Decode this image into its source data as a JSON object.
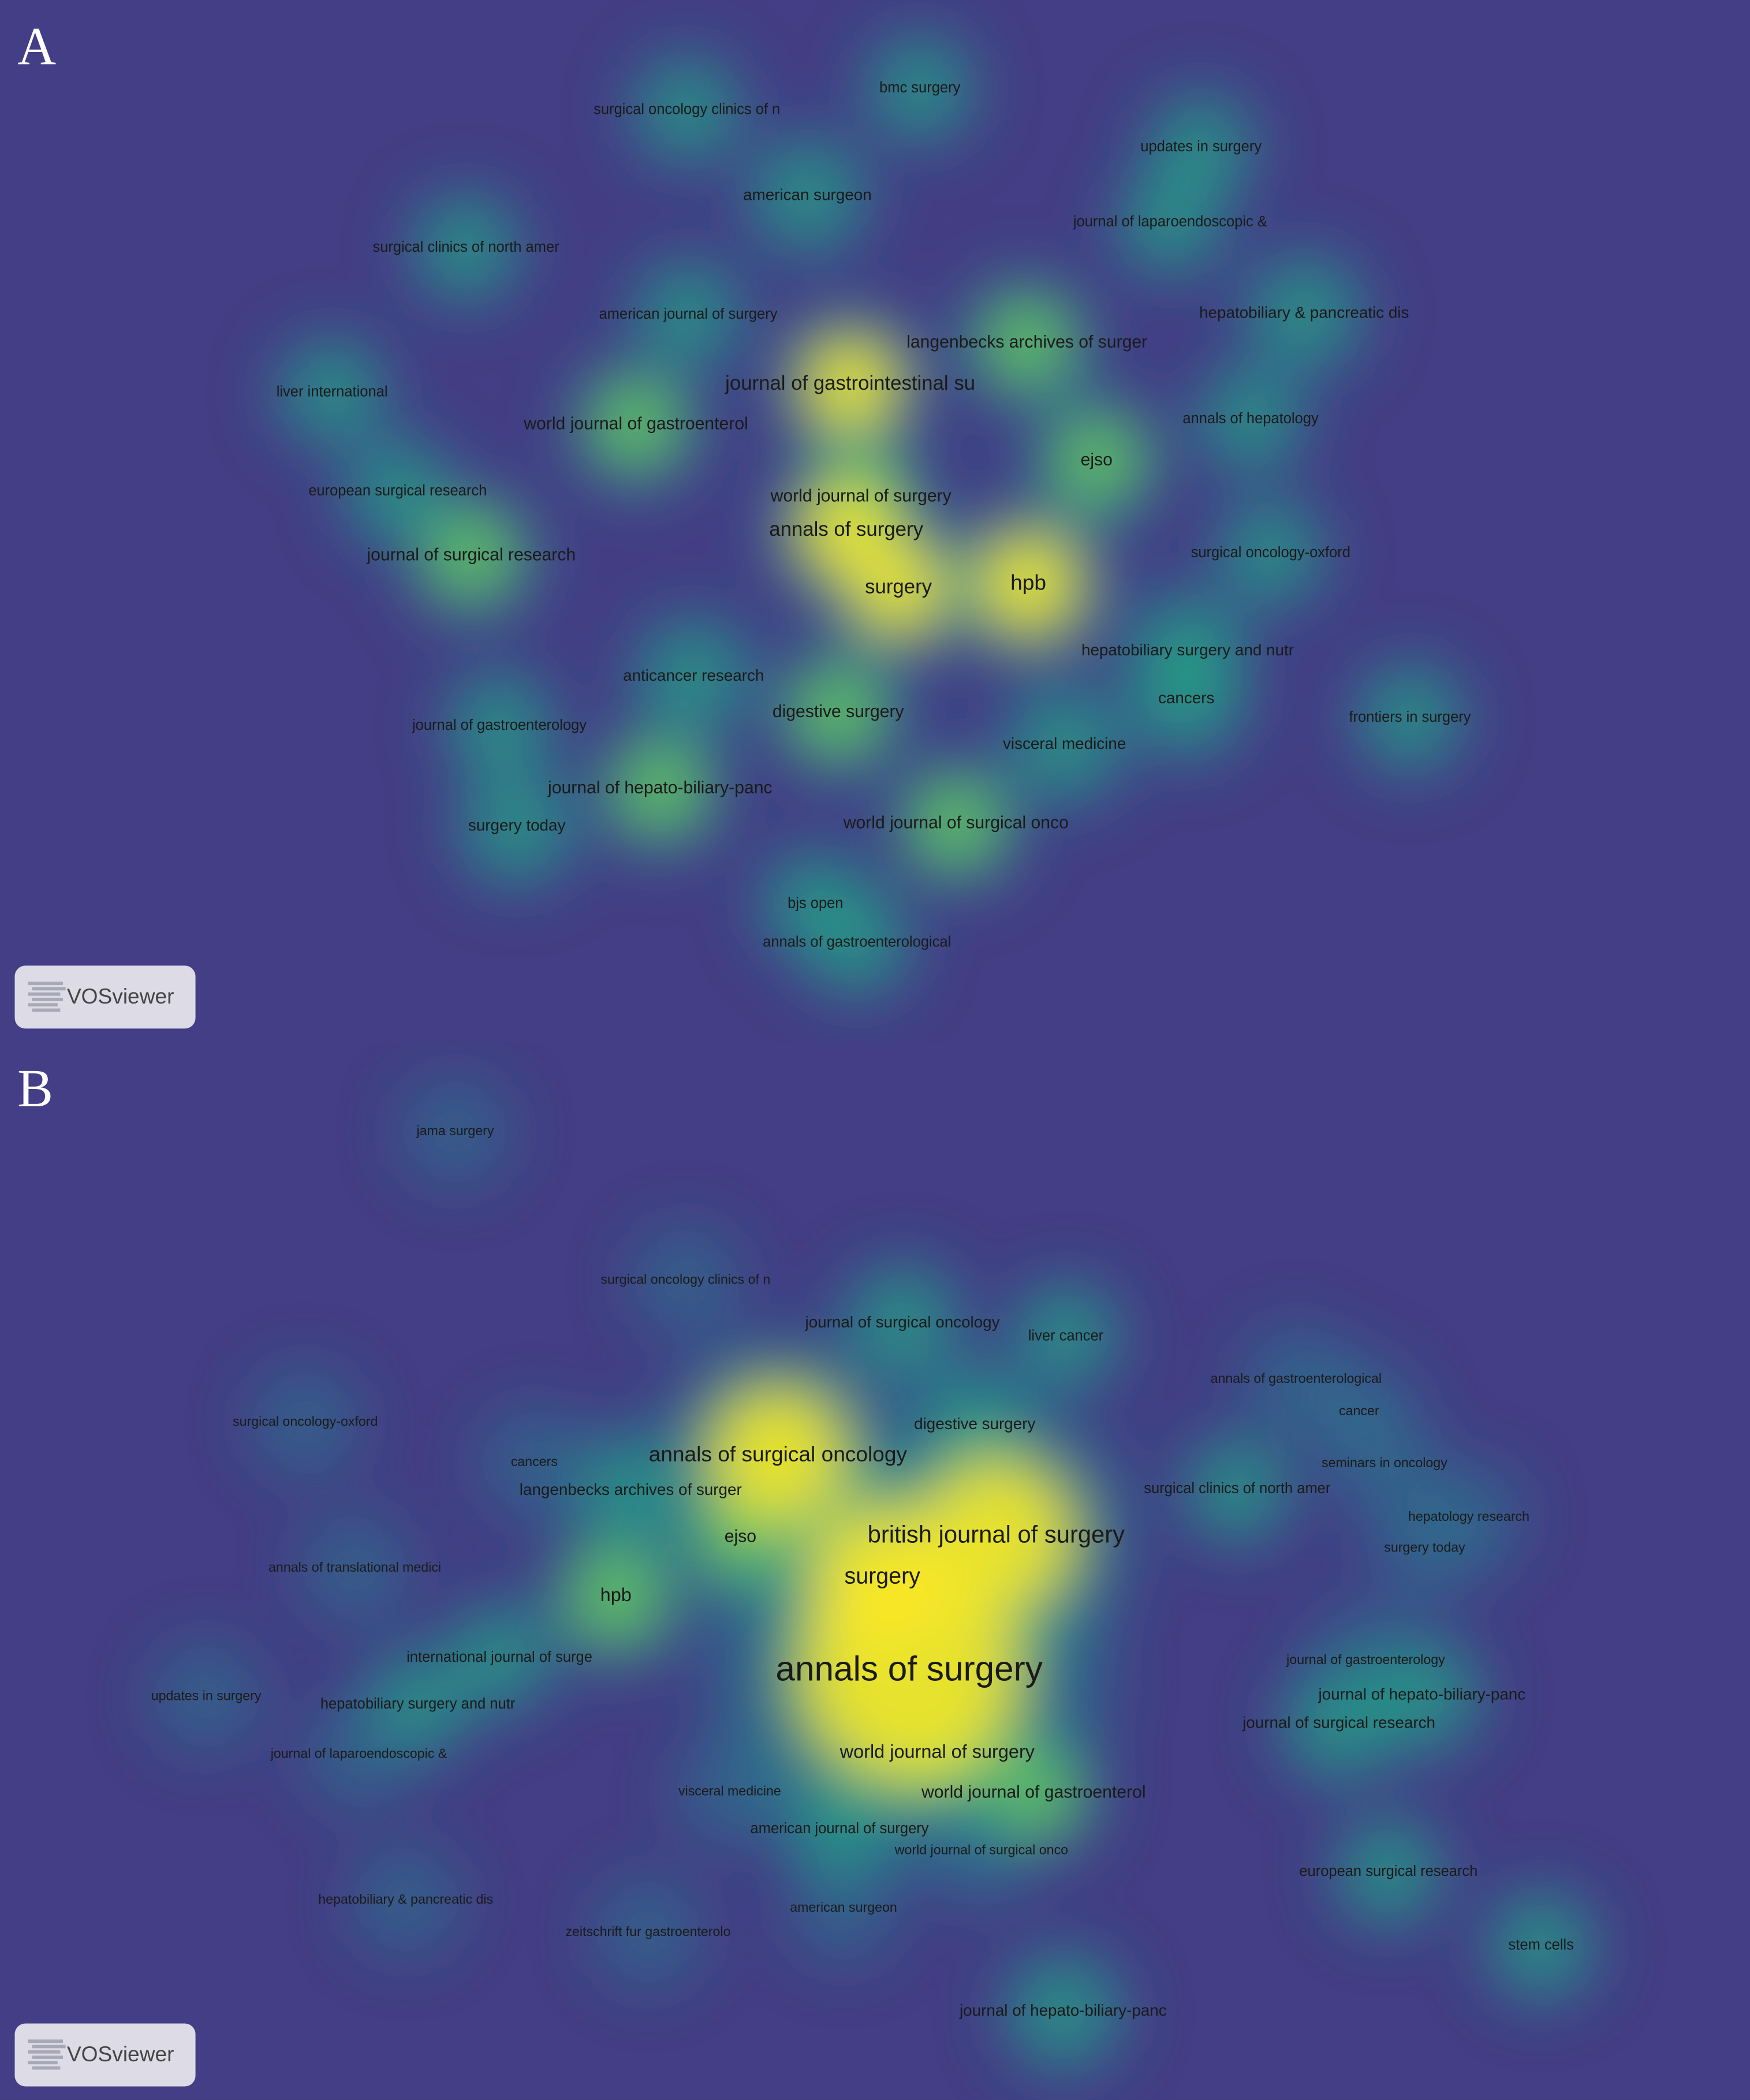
{
  "panels": [
    {
      "label": "A",
      "logo": "VOSviewer",
      "nodes": [
        "surgical oncology clinics of n",
        "bmc surgery",
        "updates in surgery",
        "american surgeon",
        "journal of laparoendoscopic &",
        "surgical clinics of north amer",
        "american journal of surgery",
        "hepatobiliary & pancreatic dis",
        "langenbecks archives of surger",
        "journal of gastrointestinal su",
        "liver international",
        "annals of hepatology",
        "world journal of gastroenterol",
        "ejso",
        "european surgical research",
        "world journal of surgery",
        "annals of surgery",
        "journal of surgical research",
        "surgical oncology-oxford",
        "hpb",
        "surgery",
        "hepatobiliary surgery and nutr",
        "anticancer research",
        "cancers",
        "digestive surgery",
        "frontiers in surgery",
        "journal of gastroenterology",
        "visceral medicine",
        "journal of hepato-biliary-panc",
        "world journal of surgical onco",
        "surgery today",
        "bjs open",
        "annals of gastroenterological"
      ]
    },
    {
      "label": "B",
      "logo": "VOSviewer",
      "nodes": [
        "jama surgery",
        "surgical oncology clinics of n",
        "journal of surgical oncology",
        "liver cancer",
        "annals of gastroenterological",
        "cancer",
        "surgical oncology-oxford",
        "digestive surgery",
        "cancers",
        "annals of surgical oncology",
        "seminars in oncology",
        "langenbecks archives of surger",
        "surgical clinics of north amer",
        "hepatology research",
        "british journal of surgery",
        "ejso",
        "surgery today",
        "annals of translational medici",
        "surgery",
        "hpb",
        "international journal of surge",
        "journal of gastroenterology",
        "annals of surgery",
        "updates in surgery",
        "journal of hepato-biliary-panc",
        "hepatobiliary surgery and nutr",
        "journal of surgical research",
        "journal of laparoendoscopic &",
        "world journal of surgery",
        "world journal of gastroenterol",
        "visceral medicine",
        "american journal of surgery",
        "world journal of surgical onco",
        "european surgical research",
        "hepatobiliary & pancreatic dis",
        "american surgeon",
        "zeitschrift fur gastroenterolo",
        "stem cells",
        "journal of hepato-biliary-panc"
      ]
    }
  ]
}
